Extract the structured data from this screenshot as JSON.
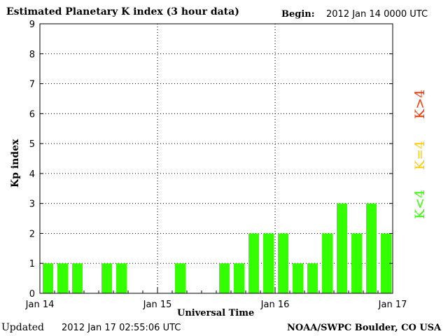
{
  "header": {
    "title": "Estimated Planetary K index (3 hour data)",
    "begin_label": "Begin:",
    "begin_value": "2012 Jan 14 0000 UTC"
  },
  "footer": {
    "updated_label": "Updated",
    "updated_value": "2012 Jan 17 02:55:06 UTC",
    "credit": "NOAA/SWPC Boulder, CO USA"
  },
  "legend": {
    "high": {
      "label": "K>4",
      "color": "#ff3300"
    },
    "mid": {
      "label": "K=4",
      "color": "#ffcc00"
    },
    "low": {
      "label": "K<4",
      "color": "#33ff00"
    }
  },
  "chart_data": {
    "type": "bar",
    "title": "Estimated Planetary K index (3 hour data)",
    "xlabel": "Universal Time",
    "ylabel": "Kp index",
    "ylim": [
      0,
      9
    ],
    "yticks": [
      "0",
      "1",
      "2",
      "3",
      "4",
      "5",
      "6",
      "7",
      "8",
      "9"
    ],
    "xticks": [
      "Jan 14",
      "Jan 15",
      "Jan 16",
      "Jan 17"
    ],
    "grid": true,
    "bar_color": "#33ff00",
    "values": [
      1,
      1,
      1,
      0,
      1,
      1,
      0,
      0,
      0,
      1,
      0,
      0,
      1,
      1,
      2,
      2,
      2,
      1,
      1,
      2,
      3,
      2,
      3,
      2
    ]
  }
}
